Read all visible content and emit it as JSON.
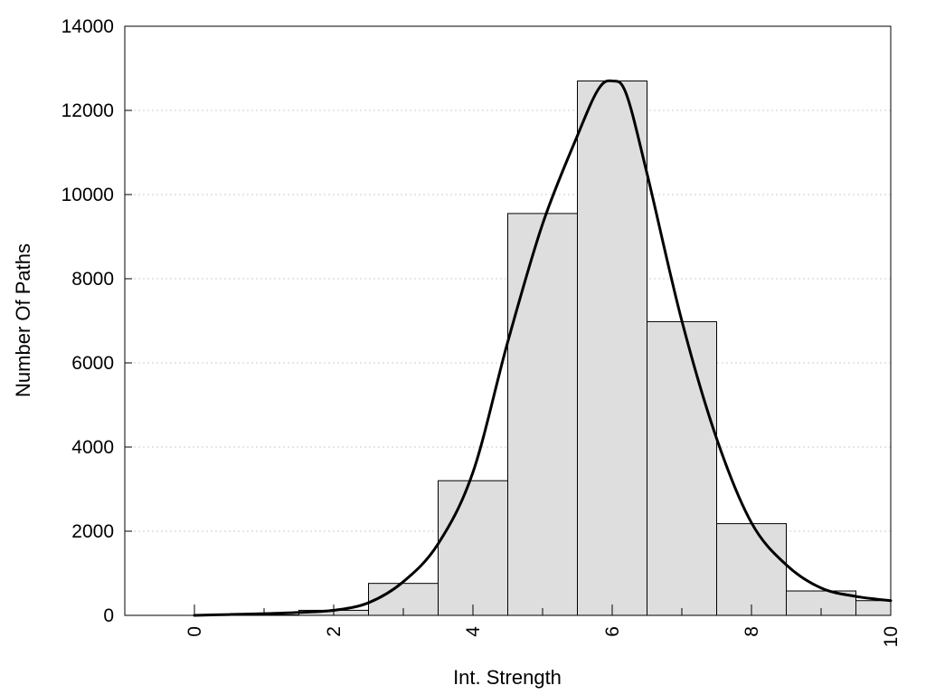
{
  "chart_data": {
    "type": "bar",
    "title": "",
    "xlabel": "Int. Strength",
    "ylabel": "Number Of Paths",
    "xlim": [
      -1,
      10
    ],
    "ylim": [
      0,
      14000
    ],
    "x_ticks": [
      0,
      2,
      4,
      6,
      8,
      10
    ],
    "x_tick_labels": [
      "0",
      "2",
      "4",
      "6",
      "8",
      "10"
    ],
    "y_ticks": [
      0,
      2000,
      4000,
      6000,
      8000,
      10000,
      12000,
      14000
    ],
    "y_tick_labels": [
      "0",
      "2000",
      "4000",
      "6000",
      "8000",
      "10000",
      "12000",
      "14000"
    ],
    "grid": "horizontal dotted",
    "bins": [
      {
        "from": -0.5,
        "to": 0.5,
        "value": 0
      },
      {
        "from": 0.5,
        "to": 1.5,
        "value": 10
      },
      {
        "from": 1.5,
        "to": 2.5,
        "value": 120
      },
      {
        "from": 2.5,
        "to": 3.5,
        "value": 760
      },
      {
        "from": 3.5,
        "to": 4.5,
        "value": 3200
      },
      {
        "from": 4.5,
        "to": 5.5,
        "value": 9550
      },
      {
        "from": 5.5,
        "to": 6.5,
        "value": 12700
      },
      {
        "from": 6.5,
        "to": 7.5,
        "value": 6980
      },
      {
        "from": 7.5,
        "to": 8.5,
        "value": 2180
      },
      {
        "from": 8.5,
        "to": 9.5,
        "value": 580
      },
      {
        "from": 9.5,
        "to": 10.5,
        "value": 350
      }
    ],
    "curve": {
      "x": [
        0,
        0.5,
        1,
        1.5,
        2,
        2.5,
        3,
        3.5,
        4,
        4.5,
        5,
        5.5,
        5.8,
        6,
        6.2,
        6.5,
        7,
        7.5,
        8,
        8.5,
        9,
        9.5,
        10
      ],
      "y": [
        0,
        20,
        40,
        70,
        120,
        300,
        800,
        1700,
        3400,
        6500,
        9300,
        11400,
        12500,
        12700,
        12400,
        10500,
        7000,
        4200,
        2200,
        1200,
        650,
        450,
        350
      ]
    },
    "colors": {
      "bar_fill": "#dedede",
      "bar_stroke": "#000000",
      "curve": "#000000",
      "grid": "#cccccc"
    }
  }
}
